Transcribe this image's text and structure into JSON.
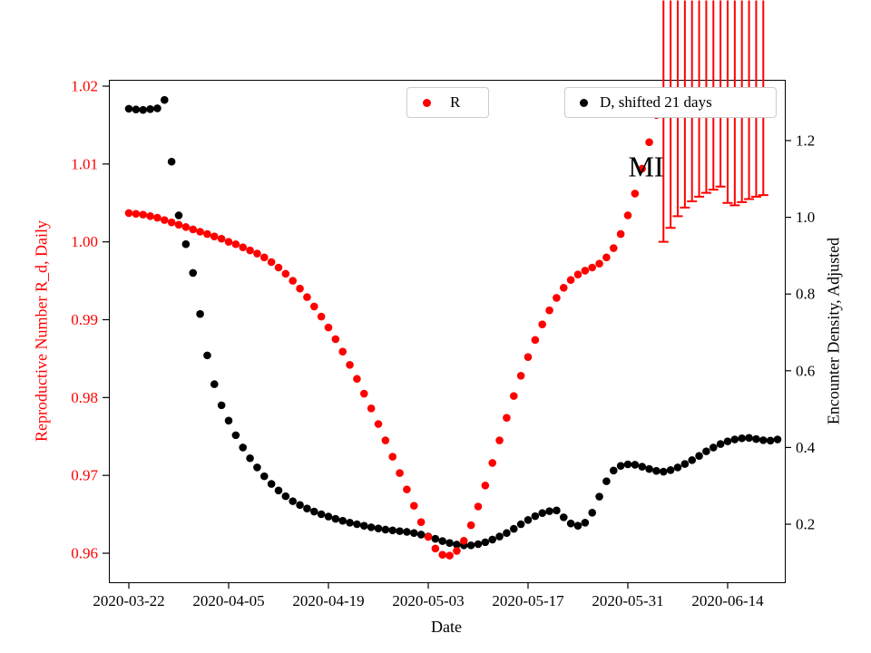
{
  "chart_data": {
    "type": "scatter",
    "title": "",
    "xlabel": "Date",
    "annotation": {
      "text": "MI"
    },
    "x_axis": {
      "start_date": "2020-03-22",
      "tick_interval_days": 14,
      "tick_labels": [
        "2020-03-22",
        "2020-04-05",
        "2020-04-19",
        "2020-05-03",
        "2020-05-17",
        "2020-05-31",
        "2020-06-14"
      ]
    },
    "left_axis": {
      "label": "Reproductive Number R_d, Daily",
      "color": "#ff0000",
      "ticks": [
        "1.02",
        "1.01",
        "1.00",
        "0.99",
        "0.98",
        "0.97",
        "0.96"
      ],
      "tick_values": [
        1.02,
        1.01,
        1.0,
        0.99,
        0.98,
        0.97,
        0.96
      ],
      "range": [
        0.956,
        1.021
      ]
    },
    "right_axis": {
      "label": "Encounter Density, Adjusted",
      "color": "#000000",
      "ticks": [
        "1.2",
        "1.0",
        "0.8",
        "0.6",
        "0.4",
        "0.2"
      ],
      "tick_values": [
        1.2,
        1.0,
        0.8,
        0.6,
        0.4,
        0.2
      ],
      "range": [
        0.13,
        1.32
      ]
    },
    "legend": [
      {
        "label": "R",
        "marker": "circle",
        "color": "#ff0000"
      },
      {
        "label": "D, shifted 21 days",
        "marker": "circle",
        "color": "#000000"
      }
    ],
    "series": [
      {
        "name": "D_shifted_21_days",
        "axis": "right",
        "marker": "circle",
        "color": "#000000",
        "start_date": "2020-03-22",
        "cadence_days": 1,
        "values": [
          1.283,
          1.281,
          1.28,
          1.282,
          1.284,
          1.306,
          1.145,
          1.005,
          0.93,
          0.855,
          0.748,
          0.64,
          0.565,
          0.51,
          0.47,
          0.432,
          0.4,
          0.372,
          0.348,
          0.325,
          0.305,
          0.288,
          0.273,
          0.26,
          0.25,
          0.241,
          0.233,
          0.226,
          0.22,
          0.214,
          0.209,
          0.204,
          0.2,
          0.196,
          0.192,
          0.189,
          0.186,
          0.184,
          0.182,
          0.18,
          0.177,
          0.173,
          0.168,
          0.162,
          0.156,
          0.151,
          0.147,
          0.145,
          0.145,
          0.148,
          0.153,
          0.16,
          0.168,
          0.177,
          0.188,
          0.2,
          0.211,
          0.221,
          0.229,
          0.234,
          0.236,
          0.218,
          0.202,
          0.196,
          0.204,
          0.23,
          0.272,
          0.312,
          0.34,
          0.352,
          0.356,
          0.355,
          0.35,
          0.344,
          0.339,
          0.337,
          0.341,
          0.348,
          0.357,
          0.367,
          0.378,
          0.39,
          0.4,
          0.409,
          0.416,
          0.421,
          0.424,
          0.425,
          0.422,
          0.419,
          0.418,
          0.421
        ]
      },
      {
        "name": "R",
        "axis": "left",
        "marker": "circle",
        "color": "#ff0000",
        "start_date": "2020-03-22",
        "cadence_days": 1,
        "values": [
          1.0037,
          1.0036,
          1.0035,
          1.0033,
          1.0031,
          1.0028,
          1.0025,
          1.0022,
          1.0019,
          1.0016,
          1.0013,
          1.001,
          1.0007,
          1.0004,
          1.0,
          0.9997,
          0.9993,
          0.9989,
          0.9985,
          0.998,
          0.9974,
          0.9967,
          0.9959,
          0.995,
          0.994,
          0.9929,
          0.9917,
          0.9904,
          0.989,
          0.9875,
          0.9859,
          0.9842,
          0.9824,
          0.9805,
          0.9786,
          0.9766,
          0.9745,
          0.9724,
          0.9703,
          0.9682,
          0.9661,
          0.964,
          0.9621,
          0.9606,
          0.9598,
          0.9597,
          0.9603,
          0.9616,
          0.9636,
          0.966,
          0.9687,
          0.9716,
          0.9745,
          0.9774,
          0.9802,
          0.9828,
          0.9852,
          0.9874,
          0.9894,
          0.9912,
          0.9928,
          0.9941,
          0.9951,
          0.9958,
          0.9963,
          0.9967,
          0.9972,
          0.998,
          0.9992,
          1.001,
          1.0034,
          1.0062,
          1.0094,
          1.0128,
          1.0163
        ]
      },
      {
        "name": "R_plus_markers",
        "axis": "left",
        "marker": "plus",
        "color": "#ff0000",
        "start_date": "2020-06-05",
        "cadence_days": 1,
        "values": [
          1.0,
          1.0018,
          1.0033,
          1.0044,
          1.0052,
          1.0058,
          1.0063,
          1.0067,
          1.0071,
          1.005,
          1.0047,
          1.0051,
          1.0055,
          1.0058,
          1.006
        ]
      }
    ]
  }
}
